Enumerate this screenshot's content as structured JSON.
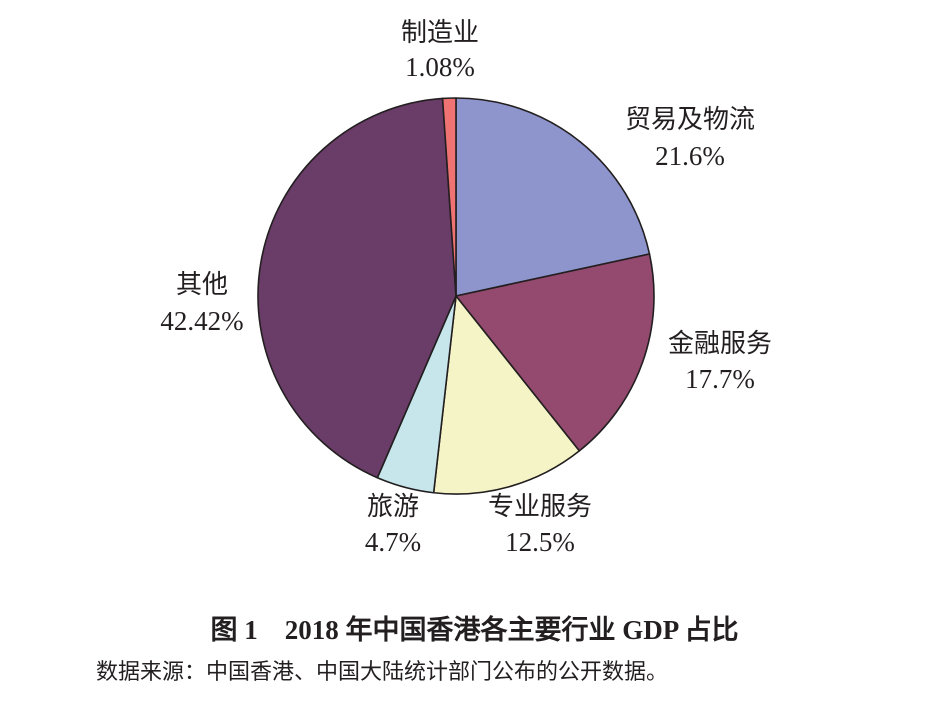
{
  "chart_data": {
    "type": "pie",
    "title": "图 1　2018 年中国香港各主要行业 GDP 占比",
    "source": "数据来源：中国香港、中国大陆统计部门公布的公开数据。",
    "start": "12 o'clock, clockwise",
    "slices": [
      {
        "label": "贸易及物流",
        "value": 21.6,
        "value_label": "21.6%",
        "color": "#8e95cc"
      },
      {
        "label": "金融服务",
        "value": 17.7,
        "value_label": "17.7%",
        "color": "#944a6f"
      },
      {
        "label": "专业服务",
        "value": 12.5,
        "value_label": "12.5%",
        "color": "#f5f4c6"
      },
      {
        "label": "旅游",
        "value": 4.7,
        "value_label": "4.7%",
        "color": "#c6e6ec"
      },
      {
        "label": "其他",
        "value": 42.42,
        "value_label": "42.42%",
        "color": "#6a3d69"
      },
      {
        "label": "制造业",
        "value": 1.08,
        "value_label": "1.08%",
        "color": "#f07373"
      }
    ]
  }
}
